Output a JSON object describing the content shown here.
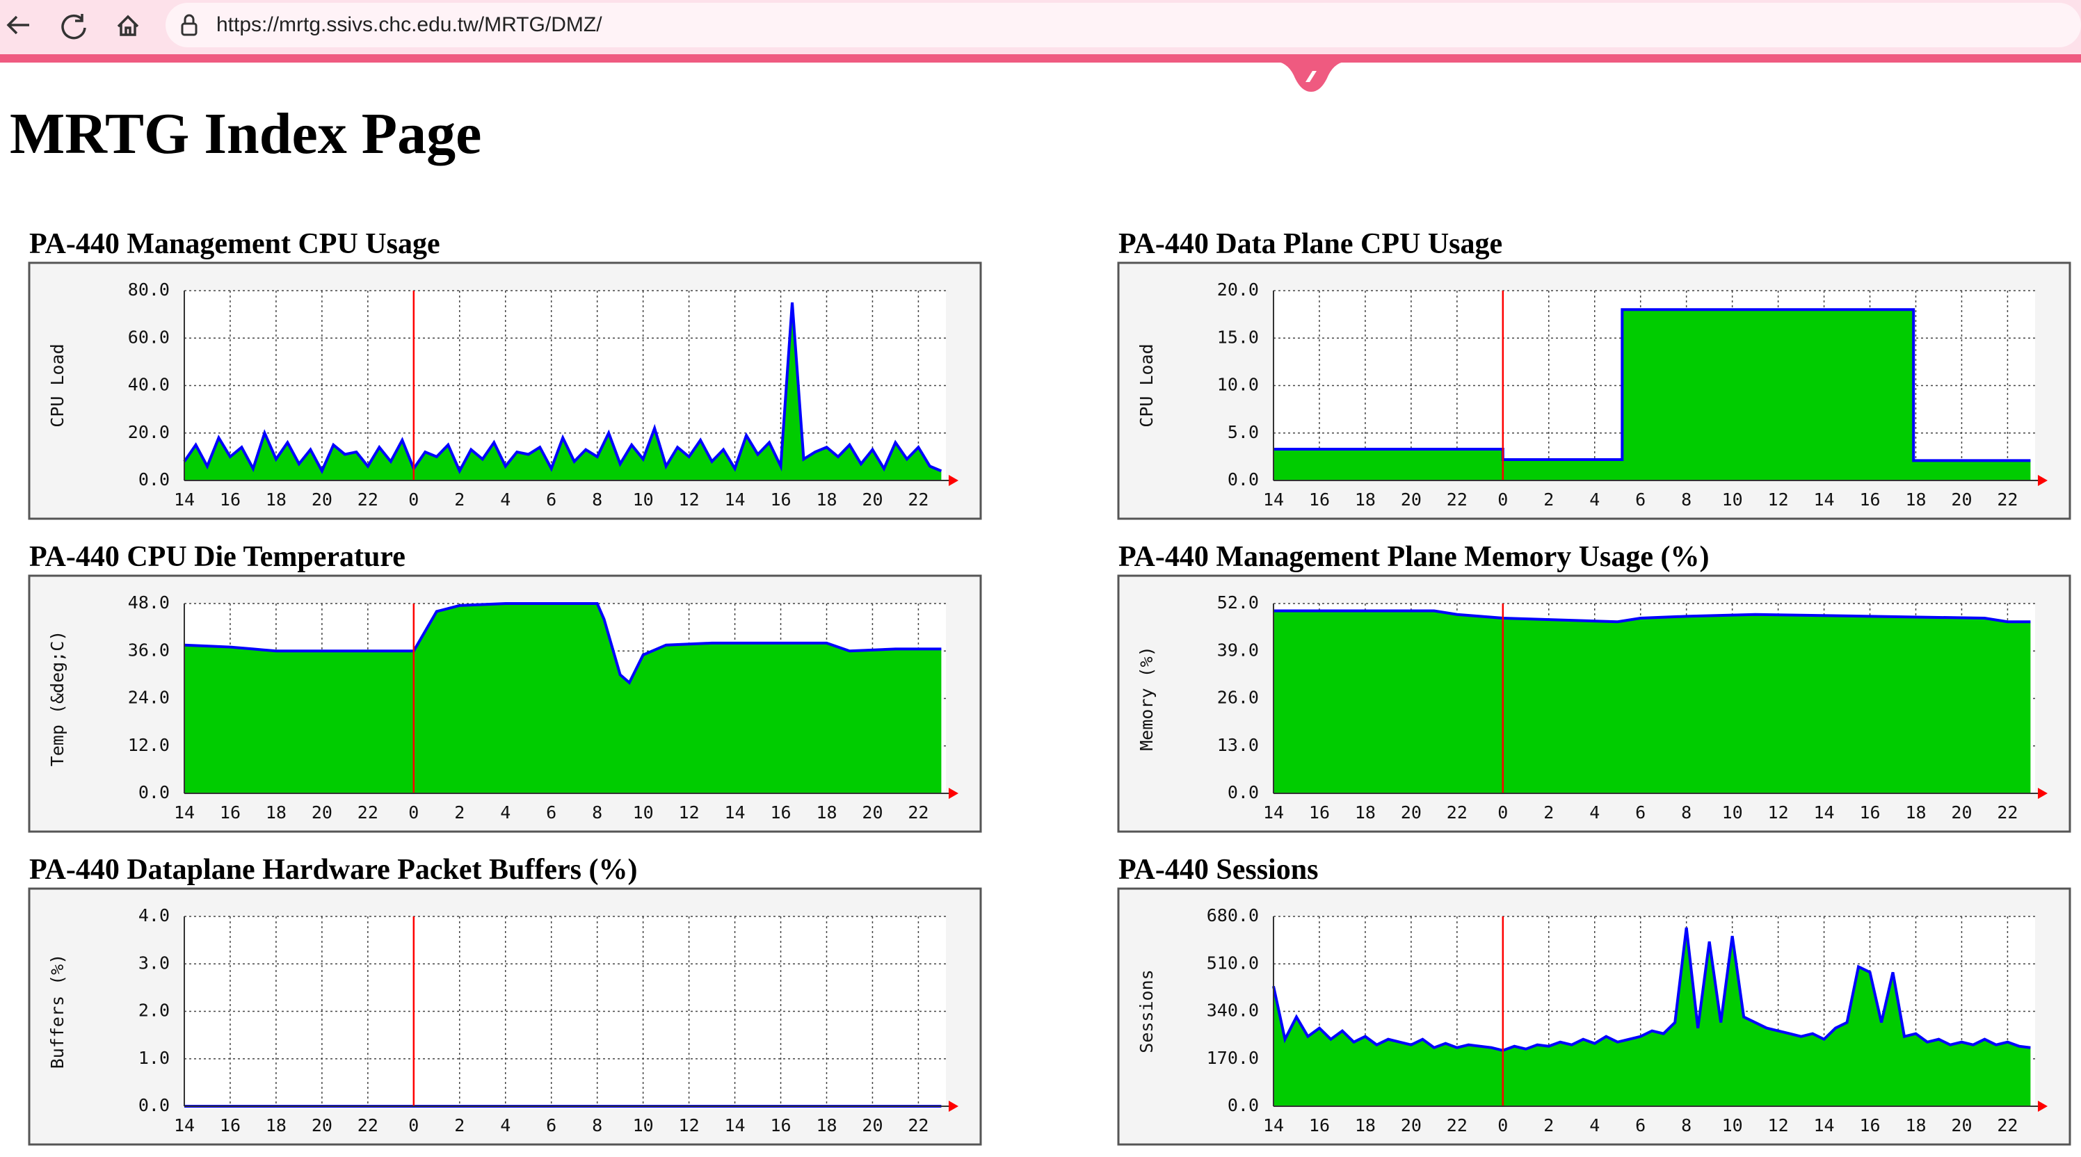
{
  "browser": {
    "url": "https://mrtg.ssivs.chc.edu.tw/MRTG/DMZ/"
  },
  "page": {
    "title": "MRTG Index Page"
  },
  "chart_data": [
    {
      "type": "area",
      "title": "PA-440 Management CPU Usage",
      "y_label": "CPU Load",
      "xlim": [
        14,
        47.2
      ],
      "xticks": [
        {
          "value": 14,
          "label": "14"
        },
        {
          "value": 16,
          "label": "16"
        },
        {
          "value": 18,
          "label": "18"
        },
        {
          "value": 20,
          "label": "20"
        },
        {
          "value": 22,
          "label": "22"
        },
        {
          "value": 24,
          "label": "0"
        },
        {
          "value": 26,
          "label": "2"
        },
        {
          "value": 28,
          "label": "4"
        },
        {
          "value": 30,
          "label": "6"
        },
        {
          "value": 32,
          "label": "8"
        },
        {
          "value": 34,
          "label": "10"
        },
        {
          "value": 36,
          "label": "12"
        },
        {
          "value": 38,
          "label": "14"
        },
        {
          "value": 40,
          "label": "16"
        },
        {
          "value": 42,
          "label": "18"
        },
        {
          "value": 44,
          "label": "20"
        },
        {
          "value": 46,
          "label": "22"
        }
      ],
      "ylim": [
        0,
        80
      ],
      "yticks": [
        {
          "value": 0,
          "label": "0.0"
        },
        {
          "value": 20,
          "label": "20.0"
        },
        {
          "value": 40,
          "label": "40.0"
        },
        {
          "value": 60,
          "label": "60.0"
        },
        {
          "value": 80,
          "label": "80.0"
        }
      ],
      "vline_x": 24,
      "fill_color": "#00cc00",
      "line_color": "#0000ff",
      "x": [
        14,
        14.5,
        15,
        15.5,
        16,
        16.5,
        17,
        17.5,
        18,
        18.5,
        19,
        19.5,
        20,
        20.5,
        21,
        21.5,
        22,
        22.5,
        23,
        23.5,
        24,
        24.5,
        25,
        25.5,
        26,
        26.5,
        27,
        27.5,
        28,
        28.5,
        29,
        29.5,
        30,
        30.5,
        31,
        31.5,
        32,
        32.5,
        33,
        33.5,
        34,
        34.5,
        35,
        35.5,
        36,
        36.5,
        37,
        37.5,
        38,
        38.5,
        39,
        39.5,
        40,
        40.5,
        41,
        41.5,
        42,
        42.5,
        43,
        43.5,
        44,
        44.5,
        45,
        45.5,
        46,
        46.5,
        47
      ],
      "values": [
        8,
        15,
        6,
        18,
        10,
        14,
        5,
        20,
        9,
        16,
        7,
        13,
        4,
        15,
        11,
        12,
        6,
        14,
        8,
        17,
        5,
        12,
        10,
        15,
        4,
        13,
        9,
        16,
        6,
        12,
        11,
        14,
        5,
        18,
        8,
        13,
        10,
        20,
        7,
        15,
        9,
        22,
        6,
        14,
        10,
        17,
        8,
        13,
        5,
        19,
        11,
        16,
        6,
        75,
        9,
        12,
        14,
        10,
        15,
        7,
        13,
        5,
        16,
        9,
        14,
        6,
        4
      ]
    },
    {
      "type": "area",
      "title": "PA-440 Data Plane CPU Usage",
      "y_label": "CPU Load",
      "xlim": [
        14,
        47.2
      ],
      "xticks": [
        {
          "value": 14,
          "label": "14"
        },
        {
          "value": 16,
          "label": "16"
        },
        {
          "value": 18,
          "label": "18"
        },
        {
          "value": 20,
          "label": "20"
        },
        {
          "value": 22,
          "label": "22"
        },
        {
          "value": 24,
          "label": "0"
        },
        {
          "value": 26,
          "label": "2"
        },
        {
          "value": 28,
          "label": "4"
        },
        {
          "value": 30,
          "label": "6"
        },
        {
          "value": 32,
          "label": "8"
        },
        {
          "value": 34,
          "label": "10"
        },
        {
          "value": 36,
          "label": "12"
        },
        {
          "value": 38,
          "label": "14"
        },
        {
          "value": 40,
          "label": "16"
        },
        {
          "value": 42,
          "label": "18"
        },
        {
          "value": 44,
          "label": "20"
        },
        {
          "value": 46,
          "label": "22"
        }
      ],
      "ylim": [
        0,
        20
      ],
      "yticks": [
        {
          "value": 0,
          "label": "0.0"
        },
        {
          "value": 5,
          "label": "5.0"
        },
        {
          "value": 10,
          "label": "10.0"
        },
        {
          "value": 15,
          "label": "15.0"
        },
        {
          "value": 20,
          "label": "20.0"
        }
      ],
      "vline_x": 24,
      "fill_color": "#00cc00",
      "line_color": "#0000ff",
      "x": [
        14,
        24,
        24,
        29.2,
        29.2,
        41.9,
        41.9,
        47
      ],
      "values": [
        3.3,
        3.3,
        2.2,
        2.2,
        18,
        18,
        2.1,
        2.1
      ]
    },
    {
      "type": "area",
      "title": "PA-440 CPU Die Temperature",
      "y_label": "Temp (&deg;C)",
      "xlim": [
        14,
        47.2
      ],
      "xticks": [
        {
          "value": 14,
          "label": "14"
        },
        {
          "value": 16,
          "label": "16"
        },
        {
          "value": 18,
          "label": "18"
        },
        {
          "value": 20,
          "label": "20"
        },
        {
          "value": 22,
          "label": "22"
        },
        {
          "value": 24,
          "label": "0"
        },
        {
          "value": 26,
          "label": "2"
        },
        {
          "value": 28,
          "label": "4"
        },
        {
          "value": 30,
          "label": "6"
        },
        {
          "value": 32,
          "label": "8"
        },
        {
          "value": 34,
          "label": "10"
        },
        {
          "value": 36,
          "label": "12"
        },
        {
          "value": 38,
          "label": "14"
        },
        {
          "value": 40,
          "label": "16"
        },
        {
          "value": 42,
          "label": "18"
        },
        {
          "value": 44,
          "label": "20"
        },
        {
          "value": 46,
          "label": "22"
        }
      ],
      "ylim": [
        0,
        48
      ],
      "yticks": [
        {
          "value": 0,
          "label": "0.0"
        },
        {
          "value": 12,
          "label": "12.0"
        },
        {
          "value": 24,
          "label": "24.0"
        },
        {
          "value": 36,
          "label": "36.0"
        },
        {
          "value": 48,
          "label": "48.0"
        }
      ],
      "vline_x": 24,
      "fill_color": "#00cc00",
      "line_color": "#0000ff",
      "x": [
        14,
        16,
        17,
        18,
        20,
        22,
        24,
        25,
        26,
        28,
        30,
        32,
        32.3,
        33,
        33.4,
        34,
        35,
        37,
        40,
        42,
        43,
        45,
        47
      ],
      "values": [
        37.5,
        37,
        36.5,
        36,
        36,
        36,
        36,
        46,
        47.5,
        48,
        48,
        48,
        44,
        30,
        28,
        35,
        37.5,
        38,
        38,
        38,
        36,
        36.5,
        36.5
      ]
    },
    {
      "type": "area",
      "title": "PA-440 Management Plane Memory Usage (%)",
      "y_label": "Memory (%)",
      "xlim": [
        14,
        47.2
      ],
      "xticks": [
        {
          "value": 14,
          "label": "14"
        },
        {
          "value": 16,
          "label": "16"
        },
        {
          "value": 18,
          "label": "18"
        },
        {
          "value": 20,
          "label": "20"
        },
        {
          "value": 22,
          "label": "22"
        },
        {
          "value": 24,
          "label": "0"
        },
        {
          "value": 26,
          "label": "2"
        },
        {
          "value": 28,
          "label": "4"
        },
        {
          "value": 30,
          "label": "6"
        },
        {
          "value": 32,
          "label": "8"
        },
        {
          "value": 34,
          "label": "10"
        },
        {
          "value": 36,
          "label": "12"
        },
        {
          "value": 38,
          "label": "14"
        },
        {
          "value": 40,
          "label": "16"
        },
        {
          "value": 42,
          "label": "18"
        },
        {
          "value": 44,
          "label": "20"
        },
        {
          "value": 46,
          "label": "22"
        }
      ],
      "ylim": [
        0,
        52
      ],
      "yticks": [
        {
          "value": 0,
          "label": "0.0"
        },
        {
          "value": 13,
          "label": "13.0"
        },
        {
          "value": 26,
          "label": "26.0"
        },
        {
          "value": 39,
          "label": "39.0"
        },
        {
          "value": 52,
          "label": "52.0"
        }
      ],
      "vline_x": 24,
      "fill_color": "#00cc00",
      "line_color": "#0000ff",
      "x": [
        14,
        21,
        22,
        24,
        29,
        30,
        32,
        35,
        40,
        45,
        46,
        47
      ],
      "values": [
        50,
        50,
        49,
        48,
        47,
        48,
        48.5,
        49,
        48.5,
        48,
        47,
        47
      ]
    },
    {
      "type": "area",
      "title": "PA-440 Dataplane Hardware Packet Buffers (%)",
      "y_label": "Buffers (%)",
      "xlim": [
        14,
        47.2
      ],
      "xticks": [
        {
          "value": 14,
          "label": "14"
        },
        {
          "value": 16,
          "label": "16"
        },
        {
          "value": 18,
          "label": "18"
        },
        {
          "value": 20,
          "label": "20"
        },
        {
          "value": 22,
          "label": "22"
        },
        {
          "value": 24,
          "label": "0"
        },
        {
          "value": 26,
          "label": "2"
        },
        {
          "value": 28,
          "label": "4"
        },
        {
          "value": 30,
          "label": "6"
        },
        {
          "value": 32,
          "label": "8"
        },
        {
          "value": 34,
          "label": "10"
        },
        {
          "value": 36,
          "label": "12"
        },
        {
          "value": 38,
          "label": "14"
        },
        {
          "value": 40,
          "label": "16"
        },
        {
          "value": 42,
          "label": "18"
        },
        {
          "value": 44,
          "label": "20"
        },
        {
          "value": 46,
          "label": "22"
        }
      ],
      "ylim": [
        0,
        4
      ],
      "yticks": [
        {
          "value": 0,
          "label": "0.0"
        },
        {
          "value": 1,
          "label": "1.0"
        },
        {
          "value": 2,
          "label": "2.0"
        },
        {
          "value": 3,
          "label": "3.0"
        },
        {
          "value": 4,
          "label": "4.0"
        }
      ],
      "vline_x": 24,
      "fill_color": "#00cc00",
      "line_color": "#0000ff",
      "x": [
        14,
        47
      ],
      "values": [
        0,
        0
      ]
    },
    {
      "type": "area",
      "title": "PA-440 Sessions",
      "y_label": "Sessions",
      "xlim": [
        14,
        47.2
      ],
      "xticks": [
        {
          "value": 14,
          "label": "14"
        },
        {
          "value": 16,
          "label": "16"
        },
        {
          "value": 18,
          "label": "18"
        },
        {
          "value": 20,
          "label": "20"
        },
        {
          "value": 22,
          "label": "22"
        },
        {
          "value": 24,
          "label": "0"
        },
        {
          "value": 26,
          "label": "2"
        },
        {
          "value": 28,
          "label": "4"
        },
        {
          "value": 30,
          "label": "6"
        },
        {
          "value": 32,
          "label": "8"
        },
        {
          "value": 34,
          "label": "10"
        },
        {
          "value": 36,
          "label": "12"
        },
        {
          "value": 38,
          "label": "14"
        },
        {
          "value": 40,
          "label": "16"
        },
        {
          "value": 42,
          "label": "18"
        },
        {
          "value": 44,
          "label": "20"
        },
        {
          "value": 46,
          "label": "22"
        }
      ],
      "ylim": [
        0,
        680
      ],
      "yticks": [
        {
          "value": 0,
          "label": "0.0"
        },
        {
          "value": 170,
          "label": "170.0"
        },
        {
          "value": 340,
          "label": "340.0"
        },
        {
          "value": 510,
          "label": "510.0"
        },
        {
          "value": 680,
          "label": "680.0"
        }
      ],
      "vline_x": 24,
      "fill_color": "#00cc00",
      "line_color": "#0000ff",
      "x": [
        14,
        14.5,
        15,
        15.5,
        16,
        16.5,
        17,
        17.5,
        18,
        18.5,
        19,
        19.5,
        20,
        20.5,
        21,
        21.5,
        22,
        22.5,
        23,
        23.5,
        24,
        24.5,
        25,
        25.5,
        26,
        26.5,
        27,
        27.5,
        28,
        28.5,
        29,
        29.5,
        30,
        30.5,
        31,
        31.5,
        32,
        32.5,
        33,
        33.5,
        34,
        34.5,
        35,
        35.5,
        36,
        36.5,
        37,
        37.5,
        38,
        38.5,
        39,
        39.5,
        40,
        40.5,
        41,
        41.5,
        42,
        42.5,
        43,
        43.5,
        44,
        44.5,
        45,
        45.5,
        46,
        46.5,
        47
      ],
      "values": [
        430,
        240,
        320,
        250,
        280,
        240,
        270,
        230,
        250,
        220,
        240,
        230,
        220,
        240,
        210,
        225,
        210,
        220,
        215,
        210,
        200,
        215,
        205,
        220,
        215,
        230,
        220,
        240,
        225,
        250,
        230,
        240,
        250,
        270,
        260,
        300,
        640,
        280,
        590,
        300,
        610,
        320,
        300,
        280,
        270,
        260,
        250,
        260,
        240,
        280,
        300,
        500,
        480,
        300,
        480,
        250,
        260,
        230,
        240,
        220,
        230,
        220,
        240,
        220,
        230,
        215,
        210
      ]
    }
  ]
}
